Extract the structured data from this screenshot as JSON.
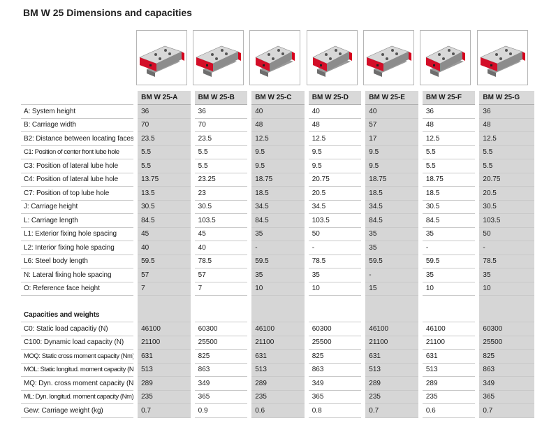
{
  "title": "BM W 25 Dimensions and capacities",
  "accent_color": "#d6001c",
  "models": [
    "BM W 25-A",
    "BM W 25-B",
    "BM W 25-C",
    "BM W 25-D",
    "BM W 25-E",
    "BM W 25-F",
    "BM W 25-G"
  ],
  "dimensions": [
    {
      "label": "A:  System height",
      "values": [
        "36",
        "36",
        "40",
        "40",
        "40",
        "36",
        "36"
      ]
    },
    {
      "label": "B:  Carriage width",
      "values": [
        "70",
        "70",
        "48",
        "48",
        "57",
        "48",
        "48"
      ]
    },
    {
      "label": "B2:  Distance between locating faces",
      "values": [
        "23.5",
        "23.5",
        "12.5",
        "12.5",
        "17",
        "12.5",
        "12.5"
      ]
    },
    {
      "label": "C1:  Position of center front lube hole",
      "values": [
        "5.5",
        "5.5",
        "9.5",
        "9.5",
        "9.5",
        "5.5",
        "5.5"
      ]
    },
    {
      "label": "C3:  Position of lateral lube hole",
      "values": [
        "5.5",
        "5.5",
        "9.5",
        "9.5",
        "9.5",
        "5.5",
        "5.5"
      ]
    },
    {
      "label": "C4:  Position of lateral lube hole",
      "values": [
        "13.75",
        "23.25",
        "18.75",
        "20.75",
        "18.75",
        "18.75",
        "20.75"
      ]
    },
    {
      "label": "C7:  Position of top lube hole",
      "values": [
        "13.5",
        "23",
        "18.5",
        "20.5",
        "18.5",
        "18.5",
        "20.5"
      ]
    },
    {
      "label": "J:  Carriage height",
      "values": [
        "30.5",
        "30.5",
        "34.5",
        "34.5",
        "34.5",
        "30.5",
        "30.5"
      ]
    },
    {
      "label": "L:  Carriage length",
      "values": [
        "84.5",
        "103.5",
        "84.5",
        "103.5",
        "84.5",
        "84.5",
        "103.5"
      ]
    },
    {
      "label": "L1:  Exterior fixing hole spacing",
      "values": [
        "45",
        "45",
        "35",
        "50",
        "35",
        "35",
        "50"
      ]
    },
    {
      "label": "L2:  Interior fixing hole spacing",
      "values": [
        "40",
        "40",
        "-",
        "-",
        "35",
        "-",
        "-"
      ]
    },
    {
      "label": "L6:  Steel body length",
      "values": [
        "59.5",
        "78.5",
        "59.5",
        "78.5",
        "59.5",
        "59.5",
        "78.5"
      ]
    },
    {
      "label": "N:  Lateral fixing hole spacing",
      "values": [
        "57",
        "57",
        "35",
        "35",
        "-",
        "35",
        "35"
      ]
    },
    {
      "label": "O:  Reference face height",
      "values": [
        "7",
        "7",
        "10",
        "10",
        "15",
        "10",
        "10"
      ]
    }
  ],
  "capacities_heading": "Capacities and weights",
  "capacities": [
    {
      "label": "C0:  Static load capacitiy (N)",
      "values": [
        "46100",
        "60300",
        "46100",
        "60300",
        "46100",
        "46100",
        "60300"
      ]
    },
    {
      "label": "C100: Dynamic load capacity (N)",
      "values": [
        "21100",
        "25500",
        "21100",
        "25500",
        "21100",
        "21100",
        "25500"
      ]
    },
    {
      "label": "MOQ: Static cross moment capacity (Nm)",
      "values": [
        "631",
        "825",
        "631",
        "825",
        "631",
        "631",
        "825"
      ]
    },
    {
      "label": "MOL: Static longitud. moment capacity (Nm)",
      "values": [
        "513",
        "863",
        "513",
        "863",
        "513",
        "513",
        "863"
      ]
    },
    {
      "label": "MQ:  Dyn. cross moment capacity (Nm)",
      "values": [
        "289",
        "349",
        "289",
        "349",
        "289",
        "289",
        "349"
      ]
    },
    {
      "label": "ML:  Dyn. longitud. moment capacity (Nm)",
      "values": [
        "235",
        "365",
        "235",
        "365",
        "235",
        "235",
        "365"
      ]
    },
    {
      "label": "Gew:  Carriage weight (kg)",
      "values": [
        "0.7",
        "0.9",
        "0.6",
        "0.8",
        "0.7",
        "0.6",
        "0.7"
      ]
    }
  ]
}
